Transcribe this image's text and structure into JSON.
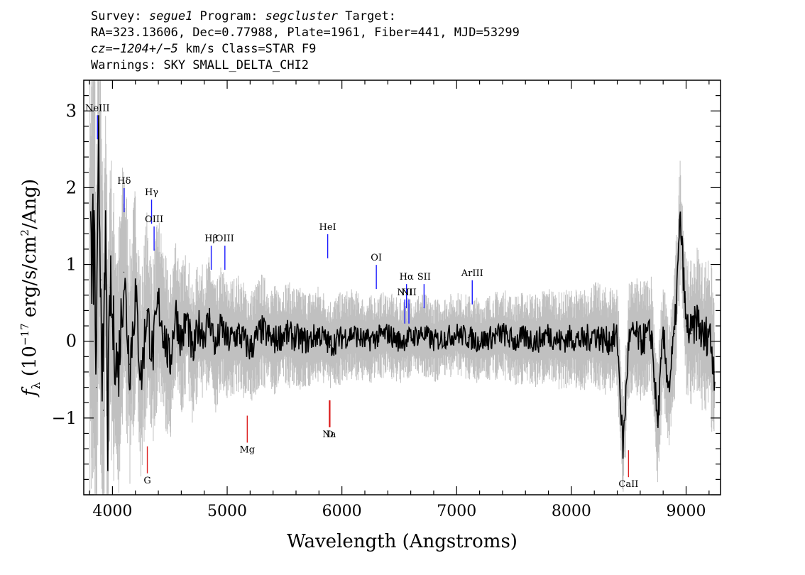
{
  "header": {
    "survey_label": "Survey: ",
    "survey": "segue1",
    "program_label": " Program: ",
    "program": "segcluster",
    "target_label": " Target:",
    "line2": "RA=323.13606, Dec=0.77988, Plate=1961, Fiber=441, MJD=53299",
    "cz_label": "cz=",
    "cz_value": "−1204+/−5",
    "cz_rest": " km/s Class=STAR F9",
    "warnings": "Warnings: SKY SMALL_DELTA_CHI2"
  },
  "chart_data": {
    "type": "line",
    "xlabel": "Wavelength (Angstroms)",
    "ylabel_symbol": "f",
    "ylabel_sub": "λ",
    "ylabel_pre": "(10",
    "ylabel_exp": "−17",
    "ylabel_mid": " erg/s/cm",
    "ylabel_exp2": "2",
    "ylabel_post": "/Ang)",
    "xlim": [
      3750,
      9300
    ],
    "ylim": [
      -2.0,
      3.4
    ],
    "xticks": [
      4000,
      5000,
      6000,
      7000,
      8000,
      9000
    ],
    "yticks": [
      3,
      2,
      1,
      0,
      -1
    ],
    "ytick_labels": [
      "3",
      "2",
      "1",
      "0",
      "−1"
    ],
    "series": [
      {
        "role": "flux",
        "color": "#000000",
        "x": [
          3820,
          3840,
          3860,
          3880,
          3900,
          3920,
          3940,
          3960,
          3980,
          4000,
          4050,
          4100,
          4150,
          4200,
          4250,
          4300,
          4350,
          4400,
          4450,
          4500,
          4550,
          4600,
          4650,
          4700,
          4750,
          4800,
          4850,
          4900,
          4950,
          5000,
          5100,
          5200,
          5300,
          5400,
          5500,
          5600,
          5700,
          5800,
          5900,
          6000,
          6100,
          6200,
          6300,
          6400,
          6500,
          6600,
          6700,
          6800,
          6900,
          7000,
          7100,
          7200,
          7300,
          7400,
          7500,
          7600,
          7700,
          7800,
          7900,
          8000,
          8100,
          8200,
          8300,
          8400,
          8450,
          8500,
          8550,
          8600,
          8650,
          8700,
          8750,
          8800,
          8850,
          8900,
          8950,
          9000,
          9050,
          9100,
          9150,
          9200,
          9250
        ],
        "y": [
          0.9,
          1.3,
          -0.6,
          2.3,
          0.8,
          -0.9,
          1.5,
          -1.2,
          0.7,
          0.2,
          -0.4,
          0.9,
          -0.3,
          0.6,
          -0.5,
          0.4,
          -0.2,
          0.5,
          0.1,
          -0.3,
          0.4,
          0.0,
          0.3,
          -0.2,
          0.2,
          0.1,
          0.3,
          -0.1,
          0.2,
          0.0,
          0.1,
          -0.1,
          0.15,
          0.0,
          0.1,
          0.05,
          0.0,
          0.1,
          -0.05,
          0.05,
          0.1,
          0.0,
          0.05,
          0.1,
          0.0,
          0.05,
          0.1,
          0.0,
          0.05,
          0.1,
          0.05,
          0.0,
          0.05,
          0.1,
          0.0,
          0.05,
          0.0,
          0.1,
          0.0,
          0.05,
          0.0,
          0.1,
          0.0,
          0.05,
          -1.4,
          0.0,
          0.1,
          0.0,
          0.05,
          0.1,
          -1.1,
          0.05,
          -0.6,
          0.1,
          1.6,
          0.2,
          0.1,
          0.3,
          0.0,
          0.15,
          -0.4
        ]
      },
      {
        "role": "error",
        "color": "#c0c0c0",
        "x": [
          3800,
          3850,
          3900,
          3950,
          4000,
          4100,
          4200,
          4300,
          4400,
          4500,
          4700,
          5000,
          5500,
          6000,
          6500,
          7000,
          7500,
          8000,
          8500,
          9000,
          9250
        ],
        "y": [
          3.4,
          3.3,
          2.8,
          2.4,
          2.0,
          1.7,
          1.5,
          1.3,
          1.2,
          1.1,
          0.9,
          0.8,
          0.7,
          0.6,
          0.55,
          0.55,
          0.6,
          0.65,
          0.75,
          0.9,
          1.1
        ]
      }
    ],
    "emission_lines": [
      {
        "label": "NeIII",
        "wavelength": 3869,
        "label_y": 3.0
      },
      {
        "label": "Hδ",
        "wavelength": 4102,
        "label_y": 2.05
      },
      {
        "label": "Hγ",
        "wavelength": 4341,
        "label_y": 1.9
      },
      {
        "label": "OIII",
        "wavelength": 4363,
        "label_y": 1.55
      },
      {
        "label": "Hβ",
        "wavelength": 4861,
        "label_y": 1.3
      },
      {
        "label": "OIII",
        "wavelength": 4980,
        "label_y": 1.3
      },
      {
        "label": "HeI",
        "wavelength": 5876,
        "label_y": 1.45
      },
      {
        "label": "OI",
        "wavelength": 6300,
        "label_y": 1.05
      },
      {
        "label": "NII",
        "wavelength": 6548,
        "label_y": 0.6
      },
      {
        "label": "Hα",
        "wavelength": 6563,
        "label_y": 0.8
      },
      {
        "label": "SII",
        "wavelength": 6716,
        "label_y": 0.8
      },
      {
        "label": "NII",
        "wavelength": 6584,
        "label_y": 0.6
      },
      {
        "label": "ArIII",
        "wavelength": 7136,
        "label_y": 0.85
      }
    ],
    "absorption_lines": [
      {
        "label": "G",
        "wavelength": 4304,
        "label_y": -1.85
      },
      {
        "label": "Mg",
        "wavelength": 5175,
        "label_y": -1.45
      },
      {
        "label": "Na",
        "wavelength": 5890,
        "label_y": -1.25
      },
      {
        "label": "D",
        "wavelength": 5896,
        "label_y": -1.25
      },
      {
        "label": "CaII",
        "wavelength": 8498,
        "label_y": -1.9
      }
    ]
  }
}
